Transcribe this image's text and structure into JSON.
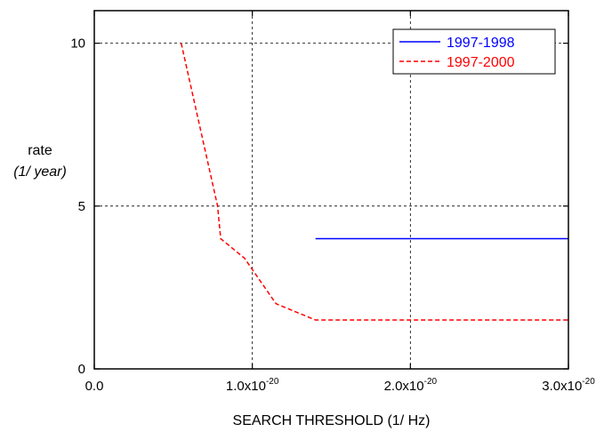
{
  "chart_data": {
    "type": "line",
    "title": "",
    "xlabel": "SEARCH THRESHOLD (1/ Hz)",
    "ylabel": "rate",
    "ylabel_unit": "(1/ year)",
    "xlim": [
      0,
      3e-20
    ],
    "ylim": [
      0,
      11
    ],
    "x_ticks": [
      {
        "value": 0,
        "mantissa": "0.0",
        "exponent": ""
      },
      {
        "value": 1e-20,
        "mantissa": "1.0x10",
        "exponent": "-20"
      },
      {
        "value": 2e-20,
        "mantissa": "2.0x10",
        "exponent": "-20"
      },
      {
        "value": 3e-20,
        "mantissa": "3.0x10",
        "exponent": "-20"
      }
    ],
    "y_ticks": [
      {
        "value": 0,
        "label": "0"
      },
      {
        "value": 5,
        "label": "5"
      },
      {
        "value": 10,
        "label": "10"
      }
    ],
    "grid": true,
    "legend_position": "top-right",
    "series": [
      {
        "name": "1997-1998",
        "color": "#0000ff",
        "dash": "solid",
        "x": [
          1.4e-20,
          3e-20
        ],
        "y": [
          4.0,
          4.0
        ]
      },
      {
        "name": "1997-2000",
        "color": "#ff0000",
        "dash": "dashed",
        "x": [
          5.5e-21,
          7.8e-21,
          8e-21,
          9.5e-21,
          1.15e-20,
          1.4e-20,
          3e-20
        ],
        "y": [
          10.0,
          5.0,
          4.0,
          3.4,
          2.0,
          1.5,
          1.5
        ]
      }
    ]
  }
}
